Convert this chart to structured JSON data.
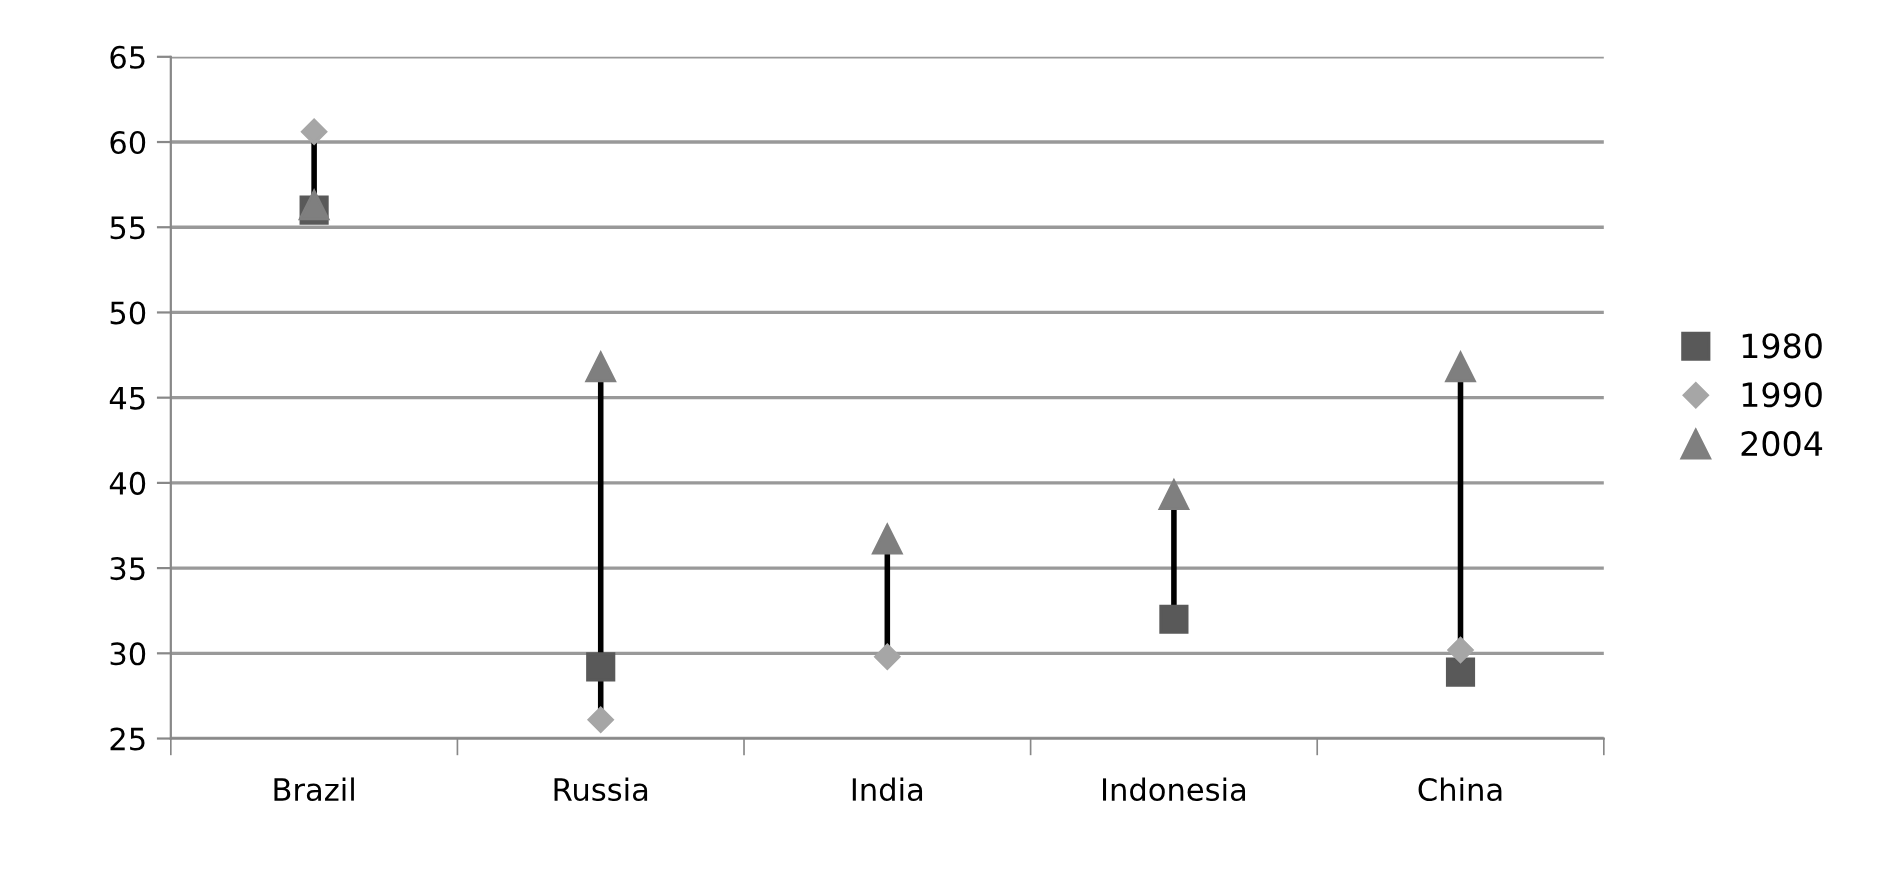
{
  "chart_data": {
    "type": "scatter",
    "categories": [
      "Brazil",
      "Russia",
      "India",
      "Indonesia",
      "China"
    ],
    "series": [
      {
        "name": "1980",
        "color": "#595959",
        "marker": "square",
        "values": [
          56.0,
          29.2,
          null,
          32.0,
          28.9
        ]
      },
      {
        "name": "1990",
        "color": "#a6a6a6",
        "marker": "diamond",
        "values": [
          60.6,
          26.1,
          29.8,
          null,
          30.2
        ]
      },
      {
        "name": "2004",
        "color": "#7f7f7f",
        "marker": "triangle",
        "values": [
          56.3,
          46.8,
          36.7,
          39.3,
          46.8
        ]
      }
    ],
    "ylim": [
      25,
      65
    ],
    "yticks": [
      25,
      30,
      35,
      40,
      45,
      50,
      55,
      60,
      65
    ],
    "grid": "y",
    "legend": "right"
  }
}
